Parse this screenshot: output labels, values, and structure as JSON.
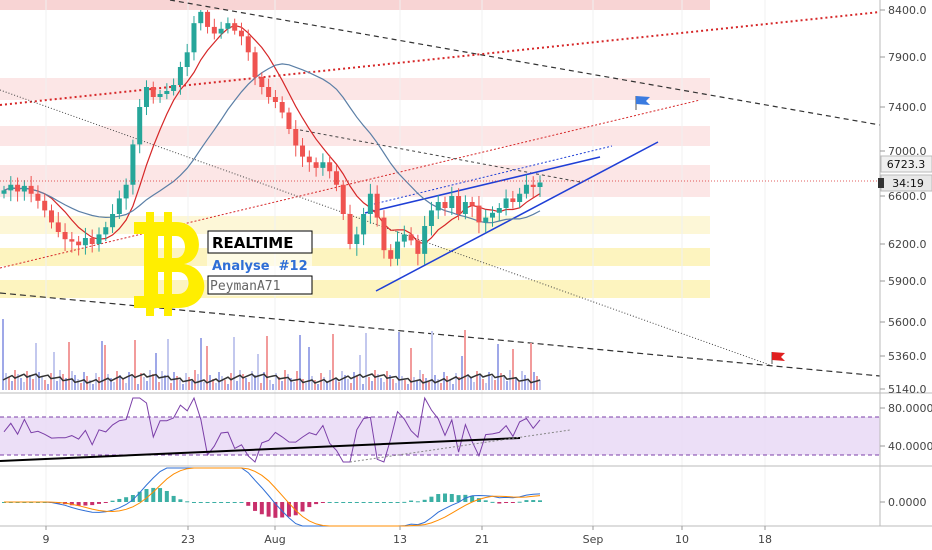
{
  "chart_data": [
    {
      "type": "candlestick",
      "pane": "price",
      "y_ticks": [
        "8400.0",
        "7900.0",
        "7400.0",
        "7000.0",
        "6600.0",
        "6200.0",
        "5900.0",
        "5600.0",
        "5360.0",
        "5140.0"
      ],
      "y_tick_values": [
        8400,
        7900,
        7400,
        7000,
        6600,
        6200,
        5900,
        5600,
        5360,
        5140
      ],
      "x_ticks": [
        "9",
        "23",
        "Aug",
        "13",
        "21",
        "Sep",
        "10",
        "18"
      ],
      "price_badge": "6723.3",
      "countdown_badge": "34:19",
      "overlay": {
        "title": "REALTIME",
        "subtitle": "Analyse  #12",
        "author": "PeymanA71"
      },
      "close_path": [
        6650,
        6700,
        6640,
        6690,
        6620,
        6560,
        6480,
        6380,
        6300,
        6240,
        6220,
        6190,
        6250,
        6200,
        6280,
        6340,
        6450,
        6580,
        6700,
        7060,
        7400,
        7600,
        7500,
        7530,
        7560,
        7620,
        7800,
        7950,
        8260,
        8380,
        8220,
        8150,
        8200,
        8260,
        8180,
        8120,
        7950,
        7700,
        7600,
        7500,
        7450,
        7350,
        7200,
        7050,
        6950,
        6900,
        6850,
        6900,
        6820,
        6700,
        6450,
        6200,
        6280,
        6450,
        6620,
        6420,
        6150,
        6080,
        6220,
        6280,
        6230,
        6120,
        6350,
        6480,
        6550,
        6500,
        6600,
        6450,
        6550,
        6520,
        6380,
        6420,
        6460,
        6500,
        6580,
        6550,
        6620,
        6700,
        6680,
        6720
      ],
      "series": [
        {
          "name": "",
          "color": "#d62728"
        },
        {
          "name": "",
          "color": "#5b7fa6"
        }
      ],
      "colors": {
        "up": "#26a69a",
        "down": "#ef5350",
        "bg": "#ffffff"
      }
    },
    {
      "type": "bar",
      "pane": "volume",
      "values": []
    },
    {
      "type": "line",
      "pane": "rsi",
      "y_ticks": [
        "80.0000",
        "40.0000"
      ],
      "y_tick_values": [
        80,
        40
      ],
      "upper": 70,
      "lower": 30,
      "color": "#7b3fa8"
    },
    {
      "type": "line",
      "pane": "macd",
      "y_ticks": [
        "0.0000"
      ],
      "y_tick_values": [
        0
      ],
      "colors": {
        "macd": "#2f6fd6",
        "signal": "#ff8c00",
        "hist_up": "#26a69a",
        "hist_down": "#c2185b"
      }
    }
  ]
}
